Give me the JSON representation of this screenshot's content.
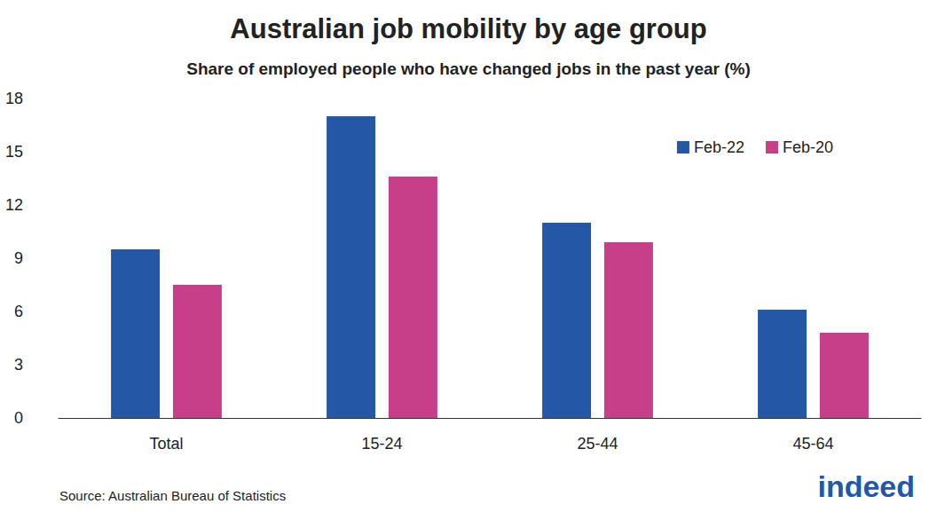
{
  "chart_data": {
    "type": "bar",
    "title": "Australian job mobility by age group",
    "subtitle": "Share of employed people who have changed jobs in the past year (%)",
    "source": "Source: Australian Bureau of Statistics",
    "logo": "indeed",
    "categories": [
      "Total",
      "15-24",
      "25-44",
      "45-64"
    ],
    "series": [
      {
        "name": "Feb-22",
        "color": "#2557a7",
        "values": [
          9.5,
          17.0,
          11.0,
          6.1
        ]
      },
      {
        "name": "Feb-20",
        "color": "#c63f88",
        "values": [
          7.5,
          13.6,
          9.9,
          4.8
        ]
      }
    ],
    "ylim": [
      0,
      18
    ],
    "yticks": [
      0,
      3,
      6,
      9,
      12,
      15,
      18
    ],
    "grid": false,
    "legend": "upper right"
  }
}
